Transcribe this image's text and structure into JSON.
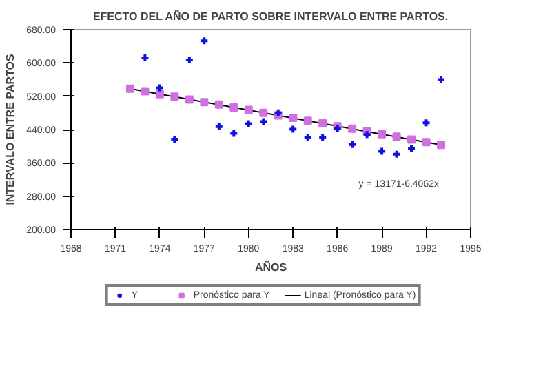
{
  "chart_data": {
    "type": "scatter",
    "title": "EFECTO DEL AÑO DE PARTO SOBRE INTERVALO ENTRE PARTOS.",
    "xlabel": "AÑOS",
    "ylabel": "INTERVALO ENTRE PARTOS",
    "series": [
      {
        "name": "Y",
        "marker": "cross",
        "color": "#1010e0",
        "x": [
          1973,
          1974,
          1975,
          1976,
          1977,
          1978,
          1979,
          1980,
          1981,
          1982,
          1983,
          1984,
          1985,
          1986,
          1987,
          1988,
          1989,
          1990,
          1991,
          1992,
          1993
        ],
        "values": [
          612,
          540,
          417,
          607,
          653,
          447,
          431,
          454,
          459,
          480,
          441,
          421,
          421,
          443,
          404,
          428,
          388,
          381,
          395,
          456,
          560
        ]
      },
      {
        "name": "Pronóstico para Y",
        "marker": "square",
        "color": "#d070e0",
        "x": [
          1972,
          1973,
          1974,
          1975,
          1976,
          1977,
          1978,
          1979,
          1980,
          1981,
          1982,
          1983,
          1984,
          1985,
          1986,
          1987,
          1988,
          1989,
          1990,
          1991,
          1992,
          1993
        ],
        "values": [
          538,
          532,
          525,
          519,
          512,
          506,
          500,
          493,
          487,
          480,
          474,
          468,
          461,
          455,
          448,
          442,
          436,
          429,
          423,
          416,
          410,
          403
        ]
      },
      {
        "name": "Lineal (Pronóstico para Y)",
        "type": "line",
        "line_style": "solid",
        "color": "#000000",
        "x": [
          1972,
          1993
        ],
        "values": [
          538,
          403
        ]
      }
    ],
    "xlim": [
      1968,
      1995
    ],
    "xticks": [
      1968,
      1971,
      1974,
      1977,
      1980,
      1983,
      1986,
      1989,
      1992,
      1995
    ],
    "ylim": [
      200,
      680
    ],
    "yticks": [
      {
        "value": 200,
        "label": "200.00"
      },
      {
        "value": 280,
        "label": "280.00"
      },
      {
        "value": 360,
        "label": "360.00"
      },
      {
        "value": 440,
        "label": "440.00"
      },
      {
        "value": 520,
        "label": "520.00"
      },
      {
        "value": 600,
        "label": "600.00"
      },
      {
        "value": 680,
        "label": "680.00"
      }
    ],
    "grid": false,
    "legend": "bottom",
    "annotations": [
      "y = 13171-6.4062x"
    ]
  }
}
